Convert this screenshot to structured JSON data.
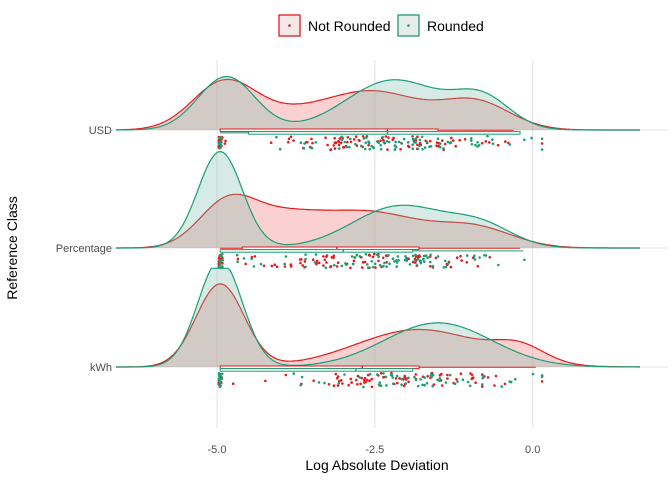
{
  "chart_data": {
    "type": "raincloud",
    "title": "",
    "xlabel": "Log Absolute Deviation",
    "ylabel": "Reference Class",
    "xlim": [
      -6.6,
      1.7
    ],
    "x_ticks": [
      {
        "value": -5.0,
        "label": "-5.0"
      },
      {
        "value": -2.5,
        "label": "-2.5"
      },
      {
        "value": 0.0,
        "label": "0.0"
      }
    ],
    "categories": [
      "USD",
      "Percentage",
      "kWh"
    ],
    "legend": {
      "position": "top",
      "entries": [
        {
          "name": "Not Rounded",
          "color": "#e41a1c"
        },
        {
          "name": "Rounded",
          "color": "#1b9e77"
        }
      ]
    },
    "colors": {
      "not_rounded": "#e41a1c",
      "rounded": "#1b9e77",
      "grid": "#e5e5e5"
    },
    "density_scale": 0.5,
    "groups": {
      "USD": {
        "not_rounded": {
          "density": [
            {
              "mu": -4.9,
              "sd": 0.5,
              "w": 0.3
            },
            {
              "mu": -2.5,
              "sd": 0.75,
              "w": 0.37
            },
            {
              "mu": -0.9,
              "sd": 0.55,
              "w": 0.2
            },
            {
              "mu": -3.9,
              "sd": 0.7,
              "w": 0.13
            }
          ],
          "box": {
            "q1": -4.95,
            "median": -2.3,
            "q3": -1.5,
            "whisker_low": -4.95,
            "whisker_high": -0.3
          },
          "points_clusters": [
            {
              "mean": -4.95,
              "sd": 0.03,
              "n": 14
            },
            {
              "mean": -2.3,
              "sd": 1.05,
              "n": 90
            }
          ]
        },
        "rounded": {
          "density": [
            {
              "mu": -4.85,
              "sd": 0.45,
              "w": 0.32
            },
            {
              "mu": -2.2,
              "sd": 0.75,
              "w": 0.5
            },
            {
              "mu": -0.8,
              "sd": 0.45,
              "w": 0.18
            }
          ],
          "box": {
            "q1": -4.5,
            "median": -2.3,
            "q3": -0.2,
            "whisker_low": -4.95,
            "whisker_high": -0.2
          },
          "points_clusters": [
            {
              "mean": -4.95,
              "sd": 0.03,
              "n": 14
            },
            {
              "mean": -2.2,
              "sd": 1.0,
              "n": 80
            }
          ]
        }
      },
      "Percentage": {
        "not_rounded": {
          "density": [
            {
              "mu": -4.85,
              "sd": 0.45,
              "w": 0.25
            },
            {
              "mu": -4.0,
              "sd": 0.6,
              "w": 0.2
            },
            {
              "mu": -2.6,
              "sd": 0.85,
              "w": 0.4
            },
            {
              "mu": -0.9,
              "sd": 0.6,
              "w": 0.15
            }
          ],
          "box": {
            "q1": -4.6,
            "median": -3.1,
            "q3": -1.8,
            "whisker_low": -4.95,
            "whisker_high": -0.2
          },
          "points_clusters": [
            {
              "mean": -4.95,
              "sd": 0.03,
              "n": 14
            },
            {
              "mean": -2.6,
              "sd": 1.05,
              "n": 90
            }
          ]
        },
        "rounded": {
          "density": [
            {
              "mu": -4.95,
              "sd": 0.35,
              "w": 0.45
            },
            {
              "mu": -2.1,
              "sd": 0.75,
              "w": 0.42
            },
            {
              "mu": -0.8,
              "sd": 0.5,
              "w": 0.13
            }
          ],
          "box": {
            "q1": -4.95,
            "median": -3.0,
            "q3": -1.9,
            "whisker_low": -4.95,
            "whisker_high": -0.15
          },
          "points_clusters": [
            {
              "mean": -4.95,
              "sd": 0.03,
              "n": 14
            },
            {
              "mean": -2.4,
              "sd": 1.0,
              "n": 80
            }
          ]
        }
      },
      "kWh": {
        "not_rounded": {
          "density": [
            {
              "mu": -4.95,
              "sd": 0.38,
              "w": 0.42
            },
            {
              "mu": -1.8,
              "sd": 1.0,
              "w": 0.5
            },
            {
              "mu": -0.2,
              "sd": 0.4,
              "w": 0.08
            }
          ],
          "box": {
            "q1": -4.95,
            "median": -2.7,
            "q3": -1.8,
            "whisker_low": -4.95,
            "whisker_high": 0.05
          },
          "points_clusters": [
            {
              "mean": -4.95,
              "sd": 0.03,
              "n": 16
            },
            {
              "mean": -1.9,
              "sd": 1.0,
              "n": 80
            }
          ]
        },
        "rounded": {
          "density": [
            {
              "mu": -4.95,
              "sd": 0.35,
              "w": 0.5
            },
            {
              "mu": -1.5,
              "sd": 0.85,
              "w": 0.5
            }
          ],
          "box": {
            "q1": -4.95,
            "median": -2.8,
            "q3": -1.9,
            "whisker_low": -4.95,
            "whisker_high": -1.9
          },
          "points_clusters": [
            {
              "mean": -4.95,
              "sd": 0.03,
              "n": 16
            },
            {
              "mean": -1.7,
              "sd": 0.95,
              "n": 60
            }
          ]
        }
      }
    }
  }
}
